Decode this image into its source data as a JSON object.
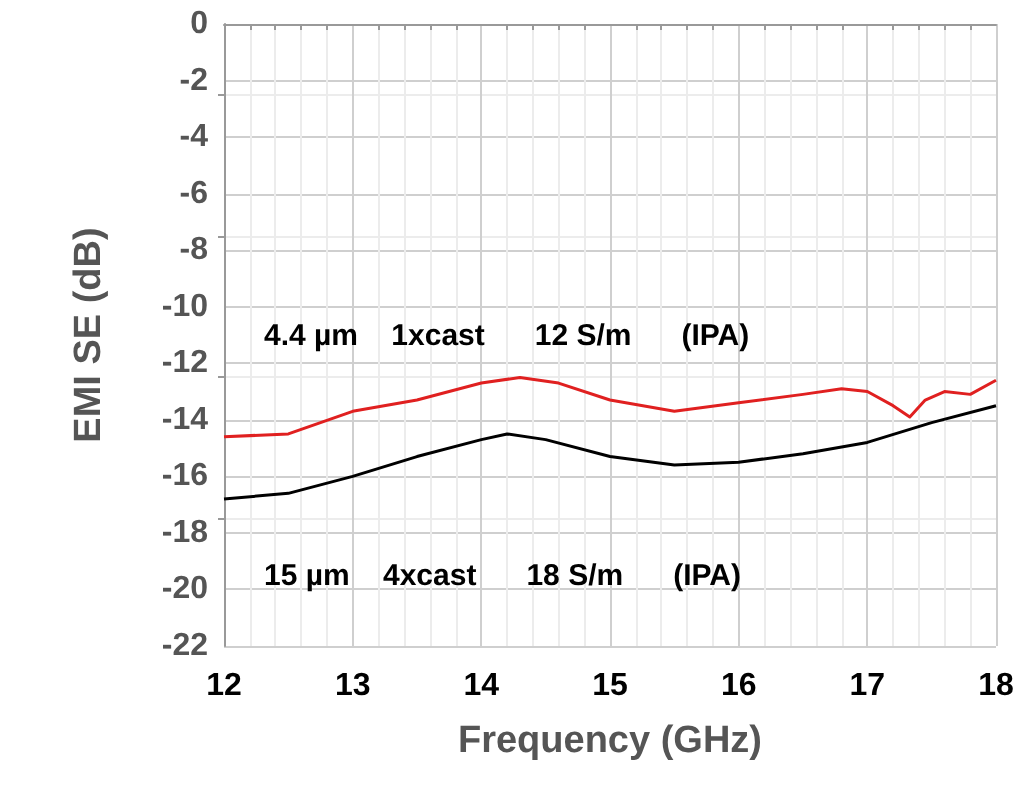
{
  "chart_data": {
    "type": "line",
    "xlabel": "Frequency (GHz)",
    "ylabel": "EMI SE (dB)",
    "xlim": [
      12,
      18
    ],
    "xticks": [
      12,
      13,
      14,
      15,
      16,
      17,
      18
    ],
    "ylim": [
      -22,
      0
    ],
    "yticks": [
      -22,
      -20,
      -18,
      -16,
      -14,
      -12,
      -10,
      -8,
      -6,
      -4,
      -2,
      0
    ],
    "grid": true,
    "marker": "none",
    "line_style": "solid",
    "series": [
      {
        "color": "#e02020",
        "x": [
          12,
          12.5,
          13,
          13.5,
          14,
          14.3,
          14.6,
          15,
          15.5,
          16,
          16.5,
          16.8,
          17,
          17.2,
          17.33,
          17.45,
          17.6,
          17.8,
          18
        ],
        "values": [
          -14.6,
          -14.5,
          -13.7,
          -13.3,
          -12.7,
          -12.5,
          -12.7,
          -13.3,
          -13.7,
          -13.4,
          -13.1,
          -12.9,
          -13,
          -13.5,
          -13.9,
          -13.3,
          -13,
          -13.1,
          -12.6
        ]
      },
      {
        "color": "#000000",
        "x": [
          12,
          12.5,
          13,
          13.5,
          14,
          14.2,
          14.5,
          15,
          15.5,
          16,
          16.5,
          17,
          17.5,
          18
        ],
        "values": [
          -16.8,
          -16.6,
          -16,
          -15.3,
          -14.7,
          -14.5,
          -14.7,
          -15.3,
          -15.6,
          -15.5,
          -15.2,
          -14.8,
          -14.1,
          -13.5
        ]
      }
    ],
    "annotations": [
      "4.4 µm    1xcast      12 S/m      (IPA)",
      "15 µm    4xcast      18 S/m      (IPA)"
    ]
  }
}
